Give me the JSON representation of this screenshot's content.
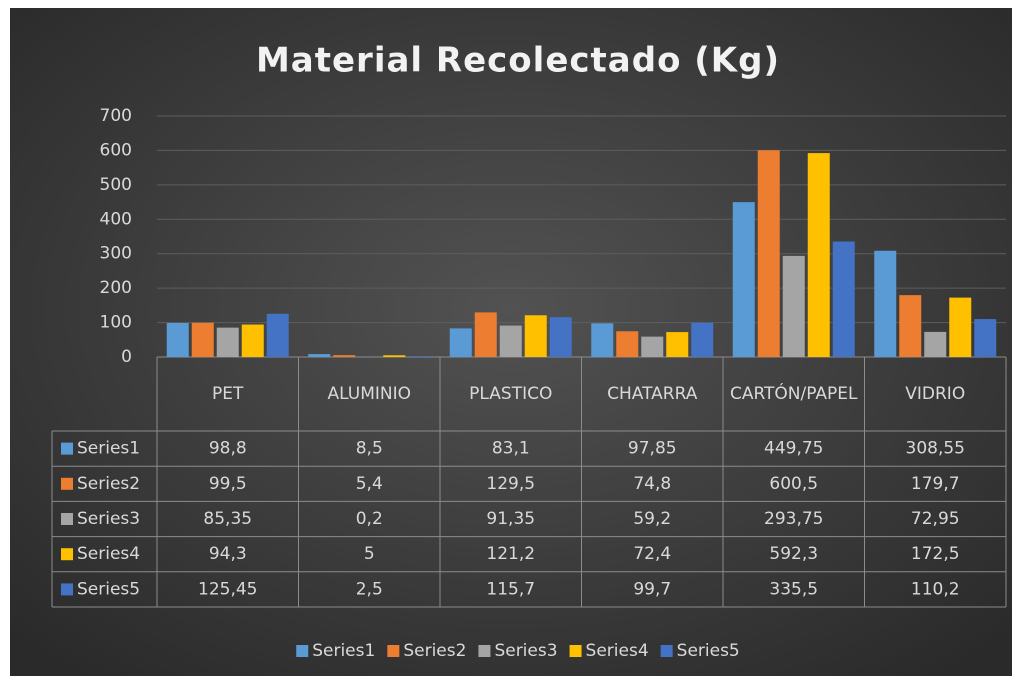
{
  "chart_data": {
    "type": "bar",
    "title": "Material Recolectado (Kg)",
    "categories": [
      "PET",
      "ALUMINIO",
      "PLASTICO",
      "CHATARRA",
      "CARTÓN/PAPEL",
      "VIDRIO"
    ],
    "series": [
      {
        "name": "Series1",
        "color": "#5b9bd5",
        "values": [
          98.8,
          8.5,
          83.1,
          97.85,
          449.75,
          308.55
        ],
        "value_labels": [
          "98,8",
          "8,5",
          "83,1",
          "97,85",
          "449,75",
          "308,55"
        ]
      },
      {
        "name": "Series2",
        "color": "#ed7d31",
        "values": [
          99.5,
          5.4,
          129.5,
          74.8,
          600.5,
          179.7
        ],
        "value_labels": [
          "99,5",
          "5,4",
          "129,5",
          "74,8",
          "600,5",
          "179,7"
        ]
      },
      {
        "name": "Series3",
        "color": "#a5a5a5",
        "values": [
          85.35,
          0.2,
          91.35,
          59.2,
          293.75,
          72.95
        ],
        "value_labels": [
          "85,35",
          "0,2",
          "91,35",
          "59,2",
          "293,75",
          "72,95"
        ]
      },
      {
        "name": "Series4",
        "color": "#ffc000",
        "values": [
          94.3,
          5,
          121.2,
          72.4,
          592.3,
          172.5
        ],
        "value_labels": [
          "94,3",
          "5",
          "121,2",
          "72,4",
          "592,3",
          "172,5"
        ]
      },
      {
        "name": "Series5",
        "color": "#4472c4",
        "values": [
          125.45,
          2.5,
          115.7,
          99.7,
          335.5,
          110.2
        ],
        "value_labels": [
          "125,45",
          "2,5",
          "115,7",
          "99,7",
          "335,5",
          "110,2"
        ]
      }
    ],
    "ylim": [
      0,
      700
    ],
    "yticks": [
      0,
      100,
      200,
      300,
      400,
      500,
      600,
      700
    ],
    "grid": true
  }
}
